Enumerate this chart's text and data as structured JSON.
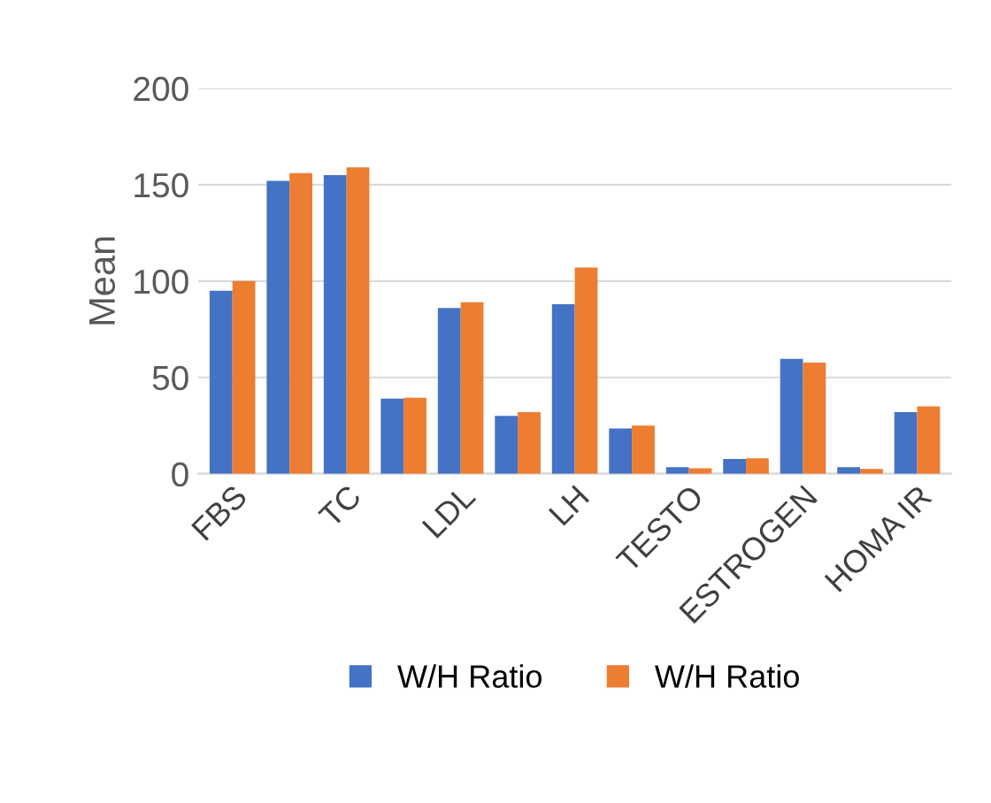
{
  "chart_data": {
    "type": "bar",
    "ylabel": "Mean",
    "categories": [
      "FBS",
      null,
      "TC",
      null,
      "LDL",
      null,
      "LH",
      null,
      "TESTO",
      null,
      "ESTROGEN",
      null,
      "HOMA IR"
    ],
    "series": [
      {
        "name": "W/H Ratio",
        "color": "#4472c4",
        "values": [
          95,
          152,
          155,
          39,
          86,
          30,
          88,
          23.5,
          3.4,
          7.7,
          59.6,
          3.4,
          32
        ]
      },
      {
        "name": "W/H Ratio",
        "color": "#ed7d31",
        "values": [
          100,
          156,
          159,
          39.5,
          89,
          32,
          107,
          25,
          2.8,
          8,
          57.7,
          2.5,
          35
        ]
      }
    ],
    "ylim": [
      0,
      200
    ],
    "yticks": [
      0,
      50,
      100,
      150,
      200
    ],
    "grid": "y",
    "legend": "bottom"
  }
}
